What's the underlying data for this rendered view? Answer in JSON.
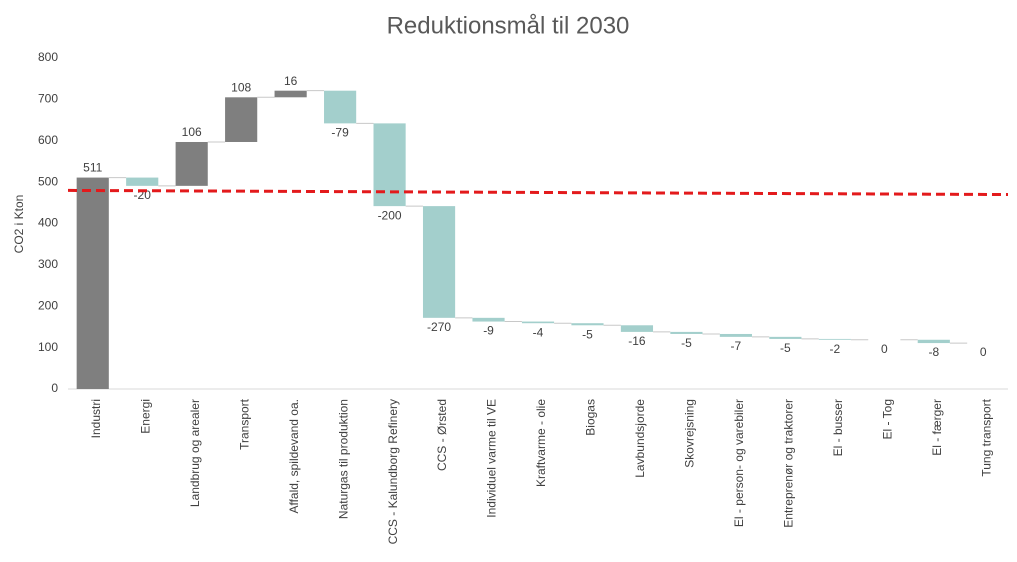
{
  "chart_data": {
    "type": "waterfall",
    "title": "Reduktionsmål til 2030",
    "ylabel": "CO2 i Kton",
    "categories": [
      "Industri",
      "Energi",
      "Landbrug og arealer",
      "Transport",
      "Affald, spildevand oa.",
      "Naturgas til produktion",
      "CCS - Kalundborg Refinery",
      "CCS - Ørsted",
      "Individuel varme til VE",
      "Kraftvarme - olie",
      "Biogas",
      "Lavbundsjorde",
      "Skovrejsning",
      "El - person- og varebiler",
      "Entreprenør og traktorer",
      "El - busser",
      "El - Tog",
      "El - færger",
      "Tung transport"
    ],
    "values": [
      511,
      -20,
      106,
      108,
      16,
      -79,
      -200,
      -270,
      -9,
      -4,
      -5,
      -16,
      -5,
      -7,
      -5,
      -2,
      0,
      -8,
      0
    ],
    "colors": {
      "increase": "#7f7f7f",
      "decrease": "#a3cfcc"
    },
    "ylim": [
      0,
      800
    ],
    "yticks": [
      0,
      100,
      200,
      300,
      400,
      500,
      600,
      700,
      800
    ],
    "grid": false,
    "reference_line": {
      "values": [
        480,
        470
      ],
      "color": "#e31a1c"
    }
  }
}
